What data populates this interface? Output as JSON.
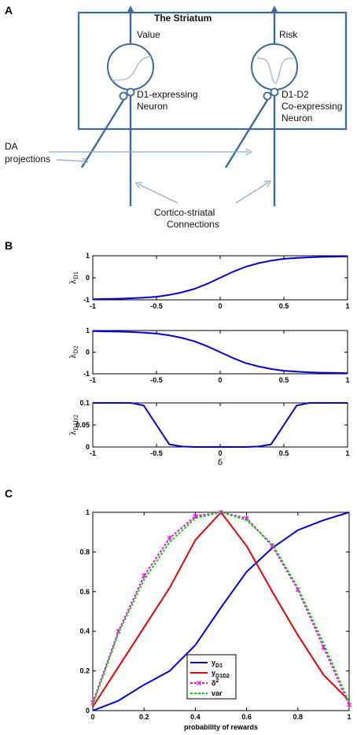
{
  "panel_a": {
    "letter": "A",
    "title": "The Striatum",
    "value_label": "Value",
    "risk_label": "Risk",
    "d1_neuron_line1": "D1-expressing",
    "d1_neuron_line2": "Neuron",
    "d1d2_neuron_line1": "D1-D2",
    "d1d2_neuron_line2": "Co-expressing",
    "d1d2_neuron_line3": "Neuron",
    "da_line1": "DA",
    "da_line2": "projections",
    "cortico_line1": "Cortico-striatal",
    "cortico_line2": "Connections"
  },
  "panel_b": {
    "letter": "B"
  },
  "panel_c": {
    "letter": "C"
  },
  "colors": {
    "diagram_blue": "#3d6a9e",
    "arrow_light": "#8ca6c4",
    "curve_blue": "#0000e0",
    "curve_red": "#ee0000",
    "curve_magenta": "#ff00ff",
    "curve_green": "#00dd00"
  },
  "chart_data": [
    {
      "type": "line",
      "ylabel_main": "λ",
      "ylabel_sub": "D1",
      "xlim": [
        -1,
        1
      ],
      "ylim": [
        -1,
        1
      ],
      "xticks": [
        "-1",
        "-0.5",
        "0",
        "0.5",
        "1"
      ],
      "yticks": [
        "1",
        "0",
        "-1"
      ],
      "series": [
        {
          "x": [
            -1,
            -0.9,
            -0.8,
            -0.7,
            -0.6,
            -0.5,
            -0.4,
            -0.3,
            -0.2,
            -0.1,
            0,
            0.1,
            0.2,
            0.3,
            0.4,
            0.5,
            0.6,
            0.7,
            0.8,
            0.9,
            1
          ],
          "values": [
            -0.97,
            -0.96,
            -0.95,
            -0.93,
            -0.9,
            -0.86,
            -0.78,
            -0.66,
            -0.5,
            -0.27,
            0.0,
            0.27,
            0.5,
            0.66,
            0.78,
            0.86,
            0.9,
            0.93,
            0.95,
            0.96,
            0.97
          ]
        }
      ]
    },
    {
      "type": "line",
      "ylabel_main": "λ",
      "ylabel_sub": "D2",
      "xlim": [
        -1,
        1
      ],
      "ylim": [
        -1,
        1
      ],
      "xticks": [
        "-1",
        "-0.5",
        "0",
        "0.5",
        "1"
      ],
      "yticks": [
        "1",
        "0",
        "-1"
      ],
      "series": [
        {
          "x": [
            -1,
            -0.9,
            -0.8,
            -0.7,
            -0.6,
            -0.5,
            -0.4,
            -0.3,
            -0.2,
            -0.1,
            0,
            0.1,
            0.2,
            0.3,
            0.4,
            0.5,
            0.6,
            0.7,
            0.8,
            0.9,
            1
          ],
          "values": [
            0.97,
            0.96,
            0.95,
            0.93,
            0.9,
            0.86,
            0.78,
            0.66,
            0.5,
            0.27,
            0.0,
            -0.27,
            -0.5,
            -0.66,
            -0.78,
            -0.86,
            -0.9,
            -0.93,
            -0.95,
            -0.96,
            -0.97
          ]
        }
      ]
    },
    {
      "type": "line",
      "ylabel_main": "λ",
      "ylabel_sub": "D1D2",
      "xlabel": "δ",
      "xlim": [
        -1,
        1
      ],
      "ylim": [
        0,
        0.1
      ],
      "xticks": [
        "-1",
        "-0.5",
        "0",
        "0.5",
        "1"
      ],
      "yticks": [
        "0.1",
        "0.05",
        "0"
      ],
      "series": [
        {
          "x": [
            -1,
            -0.8,
            -0.7,
            -0.6,
            -0.5,
            -0.4,
            -0.3,
            -0.2,
            0,
            0.2,
            0.3,
            0.4,
            0.5,
            0.6,
            0.7,
            0.8,
            1
          ],
          "values": [
            0.1,
            0.1,
            0.1,
            0.094,
            0.05,
            0.006,
            0.001,
            0.0,
            0.0,
            0.0,
            0.001,
            0.006,
            0.05,
            0.094,
            0.1,
            0.1,
            0.1
          ]
        }
      ]
    },
    {
      "type": "line",
      "xlabel": "probability of rewards",
      "xlim": [
        0,
        1
      ],
      "ylim": [
        0,
        1
      ],
      "xticks": [
        "0",
        "0.2",
        "0.4",
        "0.6",
        "0.8",
        "1"
      ],
      "yticks": [
        "1",
        "0.8",
        "0.6",
        "0.4",
        "0.2",
        "0"
      ],
      "legend_position": "bottom-center",
      "series": [
        {
          "name": "y",
          "name_sub": "D1",
          "style": "solid",
          "marker": false,
          "x": [
            0,
            0.1,
            0.2,
            0.3,
            0.4,
            0.5,
            0.6,
            0.7,
            0.8,
            0.9,
            1
          ],
          "values": [
            0.0,
            0.05,
            0.13,
            0.2,
            0.33,
            0.52,
            0.7,
            0.82,
            0.91,
            0.96,
            1.0
          ]
        },
        {
          "name": "y",
          "name_sub": "D1D2",
          "style": "solid",
          "marker": false,
          "x": [
            0,
            0.1,
            0.2,
            0.3,
            0.4,
            0.5,
            0.6,
            0.7,
            0.8,
            0.9,
            1
          ],
          "values": [
            0.02,
            0.22,
            0.42,
            0.62,
            0.86,
            1.0,
            0.83,
            0.6,
            0.38,
            0.18,
            0.05
          ]
        },
        {
          "name": "δ",
          "name_sup": "2",
          "style": "dashed",
          "marker": true,
          "x": [
            0,
            0.1,
            0.2,
            0.3,
            0.4,
            0.5,
            0.6,
            0.7,
            0.8,
            0.9,
            1
          ],
          "values": [
            0.04,
            0.4,
            0.68,
            0.87,
            0.98,
            1.0,
            0.97,
            0.83,
            0.61,
            0.32,
            0.03
          ]
        },
        {
          "name": "var",
          "style": "dashed",
          "marker": false,
          "x": [
            0,
            0.1,
            0.2,
            0.3,
            0.4,
            0.5,
            0.6,
            0.7,
            0.8,
            0.9,
            1
          ],
          "values": [
            0.03,
            0.39,
            0.66,
            0.85,
            0.97,
            1.0,
            0.96,
            0.84,
            0.62,
            0.34,
            0.04
          ]
        }
      ]
    }
  ]
}
